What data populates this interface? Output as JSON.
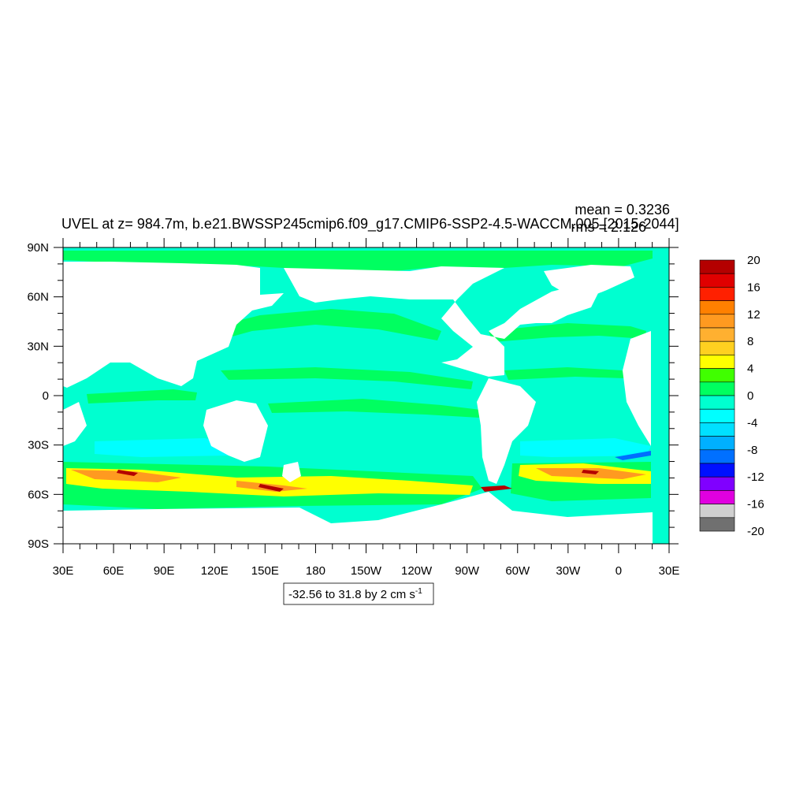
{
  "map": {
    "title": "UVEL at z= 984.7m, b.e21.BWSSP245cmip6.f09_g17.CMIP6-SSP2-4.5-WACCM.005 [2015-2044]",
    "stats": {
      "mean": "mean = 0.3236",
      "rms": "rms = 2.126"
    },
    "range_label": "-32.56 to 31.8 by 2 cm s",
    "range_unit_exponent": "-1",
    "projection": "cylindrical equidistant",
    "lon_range": [
      "30E",
      "30E"
    ],
    "lat_range": [
      "90S",
      "90N"
    ],
    "lat_ticks": [
      "90N",
      "60N",
      "30N",
      "0",
      "30S",
      "60S",
      "90S"
    ],
    "lon_ticks": [
      "30E",
      "60E",
      "90E",
      "120E",
      "150E",
      "180",
      "150W",
      "120W",
      "90W",
      "60W",
      "30W",
      "0",
      "30E"
    ],
    "land_color": "#ffffff",
    "dominant_ocean_color": "#00ffd0"
  },
  "colorbar": {
    "labels": [
      "20",
      "16",
      "12",
      "8",
      "4",
      "0",
      "-4",
      "-8",
      "-12",
      "-16",
      "-20"
    ],
    "colors": [
      "#b40000",
      "#e00000",
      "#ff2000",
      "#ff8000",
      "#ff9a20",
      "#ffb030",
      "#ffd020",
      "#ffff00",
      "#40ff00",
      "#00ff60",
      "#00ffd0",
      "#00ffff",
      "#00e0ff",
      "#00b0ff",
      "#0070ff",
      "#0010ff",
      "#8000ff",
      "#e000e0",
      "#d0d0d0",
      "#707070"
    ]
  }
}
